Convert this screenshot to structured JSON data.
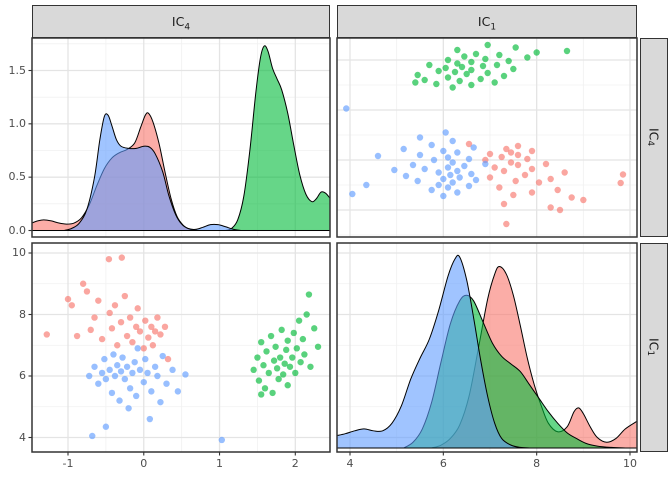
{
  "figure": {
    "background": "#ffffff",
    "strip_bg": "#d9d9d9",
    "strip_border": "#333333",
    "panel_bg": "#ffffff",
    "panel_border": "#333333",
    "grid_major": "#e4e4e4",
    "grid_minor": "#f1f1f1",
    "axis_text_color": "#4d4d4d"
  },
  "strips": {
    "top_left": {
      "base": "IC",
      "sub": "4"
    },
    "top_right": {
      "base": "IC",
      "sub": "1"
    },
    "right_top": {
      "base": "IC",
      "sub": "4"
    },
    "right_bottom": {
      "base": "IC",
      "sub": "1"
    }
  },
  "chart_data": {
    "type": "scatterplot-matrix",
    "variables": [
      "IC4",
      "IC1"
    ],
    "groups": [
      "red",
      "green",
      "blue"
    ],
    "colors": {
      "red": "#F8766D",
      "green": "#00BA38",
      "blue": "#619CFF"
    },
    "fill_opacity": 0.6,
    "point_opacity": 0.65,
    "axes": {
      "row1_y": {
        "values": [
          0,
          0.5,
          1.0,
          1.5
        ],
        "labels": [
          "0.0",
          "0.5",
          "1.0",
          "1.5"
        ],
        "minor": [
          0.25,
          0.75,
          1.25,
          1.75
        ]
      },
      "row2_y": {
        "values": [
          4,
          6,
          8,
          10
        ],
        "labels": [
          "4",
          "6",
          "8",
          "10"
        ],
        "minor": [
          5,
          7,
          9
        ]
      },
      "col1_x": {
        "values": [
          -1,
          0,
          1,
          2
        ],
        "labels": [
          "-1",
          "0",
          "1",
          "2"
        ],
        "minor": [
          -0.5,
          0.5,
          1.5
        ]
      },
      "col2_x": {
        "values": [
          4,
          6,
          8,
          10
        ],
        "labels": [
          "4",
          "6",
          "8",
          "10"
        ],
        "minor": [
          5,
          7,
          9
        ]
      },
      "tr_y_minor": [
        -1.5,
        -0.5,
        0.5,
        1.5
      ],
      "tr_y_major": [
        -1,
        0,
        1,
        2
      ]
    },
    "points_ic4_ic1": {
      "blue": [
        [
          -0.72,
          6.0
        ],
        [
          -0.68,
          4.05
        ],
        [
          -0.65,
          6.3
        ],
        [
          -0.6,
          5.75
        ],
        [
          -0.55,
          6.1
        ],
        [
          -0.52,
          6.55
        ],
        [
          -0.5,
          5.9
        ],
        [
          -0.5,
          4.35
        ],
        [
          -0.45,
          6.2
        ],
        [
          -0.42,
          5.45
        ],
        [
          -0.4,
          6.7
        ],
        [
          -0.38,
          6.0
        ],
        [
          -0.35,
          6.35
        ],
        [
          -0.32,
          5.2
        ],
        [
          -0.3,
          6.15
        ],
        [
          -0.28,
          6.6
        ],
        [
          -0.25,
          5.9
        ],
        [
          -0.22,
          6.3
        ],
        [
          -0.2,
          4.95
        ],
        [
          -0.18,
          5.6
        ],
        [
          -0.15,
          6.1
        ],
        [
          -0.12,
          6.45
        ],
        [
          -0.1,
          5.35
        ],
        [
          -0.08,
          6.9
        ],
        [
          -0.05,
          6.2
        ],
        [
          0.0,
          5.8
        ],
        [
          0.02,
          6.55
        ],
        [
          0.05,
          6.1
        ],
        [
          0.08,
          4.6
        ],
        [
          0.1,
          5.5
        ],
        [
          0.15,
          6.3
        ],
        [
          0.18,
          6.0
        ],
        [
          0.22,
          5.15
        ],
        [
          0.25,
          6.65
        ],
        [
          0.3,
          5.75
        ],
        [
          0.38,
          6.2
        ],
        [
          0.45,
          5.5
        ],
        [
          0.55,
          6.05
        ],
        [
          1.03,
          3.92
        ]
      ],
      "red": [
        [
          -1.28,
          7.35
        ],
        [
          -1.0,
          8.5
        ],
        [
          -0.95,
          8.3
        ],
        [
          -0.88,
          7.3
        ],
        [
          -0.8,
          9.0
        ],
        [
          -0.75,
          8.75
        ],
        [
          -0.7,
          7.5
        ],
        [
          -0.65,
          7.9
        ],
        [
          -0.6,
          8.45
        ],
        [
          -0.55,
          7.2
        ],
        [
          -0.46,
          9.8
        ],
        [
          -0.45,
          8.05
        ],
        [
          -0.42,
          7.55
        ],
        [
          -0.38,
          8.3
        ],
        [
          -0.35,
          7.0
        ],
        [
          -0.3,
          7.75
        ],
        [
          -0.29,
          9.85
        ],
        [
          -0.25,
          8.6
        ],
        [
          -0.22,
          7.3
        ],
        [
          -0.18,
          7.9
        ],
        [
          -0.15,
          7.1
        ],
        [
          -0.1,
          7.6
        ],
        [
          -0.08,
          8.2
        ],
        [
          -0.05,
          7.45
        ],
        [
          0.0,
          6.9
        ],
        [
          0.02,
          7.8
        ],
        [
          0.06,
          7.25
        ],
        [
          0.1,
          7.6
        ],
        [
          0.12,
          7.0
        ],
        [
          0.15,
          7.45
        ],
        [
          0.18,
          7.9
        ],
        [
          0.22,
          7.35
        ],
        [
          0.28,
          7.6
        ],
        [
          0.32,
          6.55
        ]
      ],
      "green": [
        [
          1.45,
          6.2
        ],
        [
          1.5,
          6.6
        ],
        [
          1.52,
          5.85
        ],
        [
          1.55,
          7.1
        ],
        [
          1.55,
          5.4
        ],
        [
          1.58,
          6.35
        ],
        [
          1.6,
          5.6
        ],
        [
          1.62,
          6.8
        ],
        [
          1.65,
          6.1
        ],
        [
          1.68,
          7.3
        ],
        [
          1.7,
          5.45
        ],
        [
          1.72,
          6.5
        ],
        [
          1.74,
          6.95
        ],
        [
          1.76,
          6.25
        ],
        [
          1.78,
          5.9
        ],
        [
          1.8,
          6.6
        ],
        [
          1.82,
          7.5
        ],
        [
          1.84,
          6.05
        ],
        [
          1.86,
          6.4
        ],
        [
          1.88,
          6.85
        ],
        [
          1.9,
          5.7
        ],
        [
          1.9,
          7.15
        ],
        [
          1.93,
          6.3
        ],
        [
          1.96,
          6.6
        ],
        [
          1.98,
          7.4
        ],
        [
          2.0,
          6.1
        ],
        [
          2.02,
          6.9
        ],
        [
          2.05,
          7.8
        ],
        [
          2.07,
          6.45
        ],
        [
          2.1,
          7.2
        ],
        [
          2.12,
          6.7
        ],
        [
          2.15,
          8.0
        ],
        [
          2.18,
          8.65
        ],
        [
          2.2,
          6.3
        ],
        [
          2.25,
          7.55
        ],
        [
          2.3,
          6.95
        ]
      ]
    },
    "density_ic4": {
      "red": [
        [
          -1.48,
          0.07
        ],
        [
          -1.4,
          0.09
        ],
        [
          -1.32,
          0.1
        ],
        [
          -1.22,
          0.09
        ],
        [
          -1.12,
          0.07
        ],
        [
          -1.02,
          0.06
        ],
        [
          -0.92,
          0.07
        ],
        [
          -0.82,
          0.12
        ],
        [
          -0.72,
          0.24
        ],
        [
          -0.62,
          0.42
        ],
        [
          -0.52,
          0.58
        ],
        [
          -0.42,
          0.68
        ],
        [
          -0.32,
          0.73
        ],
        [
          -0.22,
          0.76
        ],
        [
          -0.12,
          0.82
        ],
        [
          -0.04,
          0.97
        ],
        [
          0.02,
          1.08
        ],
        [
          0.06,
          1.1
        ],
        [
          0.12,
          1.02
        ],
        [
          0.2,
          0.82
        ],
        [
          0.28,
          0.55
        ],
        [
          0.36,
          0.3
        ],
        [
          0.44,
          0.13
        ],
        [
          0.52,
          0.05
        ],
        [
          0.6,
          0.015
        ],
        [
          0.7,
          0
        ]
      ],
      "green": [
        [
          1.08,
          0
        ],
        [
          1.16,
          0.02
        ],
        [
          1.24,
          0.1
        ],
        [
          1.32,
          0.32
        ],
        [
          1.4,
          0.75
        ],
        [
          1.48,
          1.3
        ],
        [
          1.54,
          1.62
        ],
        [
          1.59,
          1.73
        ],
        [
          1.64,
          1.68
        ],
        [
          1.7,
          1.52
        ],
        [
          1.76,
          1.42
        ],
        [
          1.82,
          1.32
        ],
        [
          1.9,
          1.1
        ],
        [
          1.98,
          0.8
        ],
        [
          2.06,
          0.52
        ],
        [
          2.14,
          0.34
        ],
        [
          2.22,
          0.27
        ],
        [
          2.28,
          0.3
        ],
        [
          2.34,
          0.36
        ],
        [
          2.4,
          0.35
        ],
        [
          2.46,
          0.3
        ]
      ],
      "blue": [
        [
          -1.05,
          0
        ],
        [
          -0.95,
          0.02
        ],
        [
          -0.85,
          0.07
        ],
        [
          -0.75,
          0.2
        ],
        [
          -0.65,
          0.5
        ],
        [
          -0.58,
          0.85
        ],
        [
          -0.52,
          1.07
        ],
        [
          -0.47,
          1.08
        ],
        [
          -0.42,
          0.98
        ],
        [
          -0.36,
          0.85
        ],
        [
          -0.3,
          0.79
        ],
        [
          -0.2,
          0.77
        ],
        [
          -0.1,
          0.77
        ],
        [
          0.0,
          0.79
        ],
        [
          0.08,
          0.78
        ],
        [
          0.15,
          0.72
        ],
        [
          0.25,
          0.55
        ],
        [
          0.33,
          0.33
        ],
        [
          0.42,
          0.15
        ],
        [
          0.5,
          0.06
        ],
        [
          0.58,
          0.02
        ],
        [
          0.68,
          0.01
        ],
        [
          0.78,
          0.03
        ],
        [
          0.88,
          0.055
        ],
        [
          0.98,
          0.055
        ],
        [
          1.08,
          0.035
        ],
        [
          1.18,
          0.012
        ],
        [
          1.28,
          0
        ]
      ]
    },
    "density_ic1": {
      "red": [
        [
          5.75,
          0
        ],
        [
          5.95,
          0.015
        ],
        [
          6.15,
          0.05
        ],
        [
          6.35,
          0.12
        ],
        [
          6.55,
          0.27
        ],
        [
          6.75,
          0.52
        ],
        [
          6.95,
          0.78
        ],
        [
          7.1,
          0.91
        ],
        [
          7.2,
          0.95
        ],
        [
          7.35,
          0.91
        ],
        [
          7.5,
          0.8
        ],
        [
          7.65,
          0.64
        ],
        [
          7.8,
          0.47
        ],
        [
          7.95,
          0.33
        ],
        [
          8.1,
          0.22
        ],
        [
          8.25,
          0.13
        ],
        [
          8.45,
          0.085
        ],
        [
          8.65,
          0.11
        ],
        [
          8.8,
          0.19
        ],
        [
          8.9,
          0.21
        ],
        [
          9.0,
          0.18
        ],
        [
          9.15,
          0.11
        ],
        [
          9.3,
          0.055
        ],
        [
          9.5,
          0.03
        ],
        [
          9.7,
          0.05
        ],
        [
          9.9,
          0.1
        ],
        [
          10.15,
          0.14
        ]
      ],
      "green": [
        [
          5.15,
          0
        ],
        [
          5.35,
          0.03
        ],
        [
          5.55,
          0.1
        ],
        [
          5.75,
          0.24
        ],
        [
          5.95,
          0.45
        ],
        [
          6.15,
          0.65
        ],
        [
          6.35,
          0.77
        ],
        [
          6.5,
          0.8
        ],
        [
          6.65,
          0.77
        ],
        [
          6.85,
          0.66
        ],
        [
          7.05,
          0.55
        ],
        [
          7.25,
          0.48
        ],
        [
          7.45,
          0.44
        ],
        [
          7.65,
          0.4
        ],
        [
          7.85,
          0.33
        ],
        [
          8.05,
          0.26
        ],
        [
          8.25,
          0.19
        ],
        [
          8.45,
          0.13
        ],
        [
          8.65,
          0.08
        ],
        [
          8.85,
          0.05
        ],
        [
          9.05,
          0.025
        ],
        [
          9.3,
          0.01
        ],
        [
          9.6,
          0.003
        ],
        [
          9.9,
          0
        ]
      ],
      "blue": [
        [
          3.72,
          0.065
        ],
        [
          3.9,
          0.075
        ],
        [
          4.1,
          0.09
        ],
        [
          4.3,
          0.1
        ],
        [
          4.5,
          0.09
        ],
        [
          4.7,
          0.09
        ],
        [
          4.9,
          0.13
        ],
        [
          5.1,
          0.22
        ],
        [
          5.3,
          0.36
        ],
        [
          5.5,
          0.47
        ],
        [
          5.7,
          0.57
        ],
        [
          5.9,
          0.72
        ],
        [
          6.1,
          0.9
        ],
        [
          6.25,
          0.99
        ],
        [
          6.35,
          1.0
        ],
        [
          6.5,
          0.88
        ],
        [
          6.65,
          0.68
        ],
        [
          6.8,
          0.46
        ],
        [
          6.95,
          0.27
        ],
        [
          7.1,
          0.13
        ],
        [
          7.25,
          0.05
        ],
        [
          7.45,
          0.015
        ],
        [
          7.65,
          0.003
        ],
        [
          7.85,
          0
        ]
      ]
    }
  }
}
